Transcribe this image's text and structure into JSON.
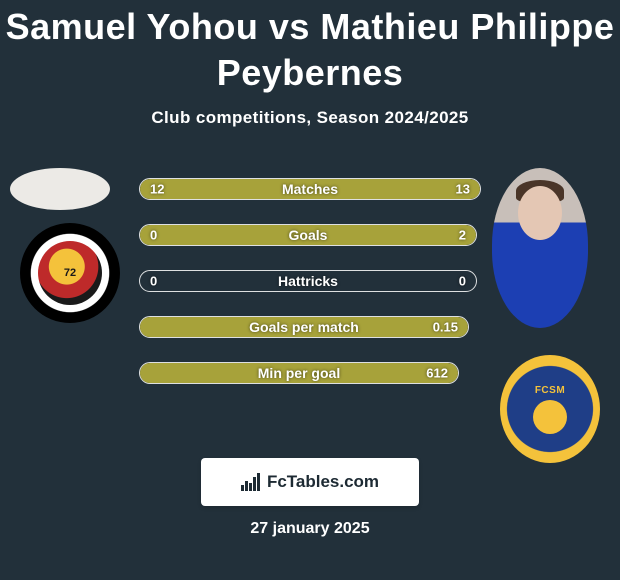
{
  "title_line1": "Samuel Yohou vs Mathieu Philippe",
  "title_line2": "Peybernes",
  "subtitle": "Club competitions, Season 2024/2025",
  "bars": [
    {
      "label": "Matches",
      "left_val": "12",
      "right_val": "13",
      "left_pct": 48,
      "right_pct": 52
    },
    {
      "label": "Goals",
      "left_val": "0",
      "right_val": "2",
      "left_pct": 0,
      "right_pct": 100
    },
    {
      "label": "Hattricks",
      "left_val": "0",
      "right_val": "0",
      "left_pct": 0,
      "right_pct": 0
    },
    {
      "label": "Goals per match",
      "left_val": "",
      "right_val": "0.15",
      "left_pct": 0,
      "right_pct": 100
    },
    {
      "label": "Min per goal",
      "left_val": "",
      "right_val": "612",
      "left_pct": 0,
      "right_pct": 100
    }
  ],
  "bar_fill_color": "#a7a23a",
  "bar_border_color": "rgba(255,255,255,0.85)",
  "footer_brand": "FcTables.com",
  "date": "27 january 2025",
  "club_left_badge_text": "72",
  "club_right_badge_text": "FCSM",
  "colors": {
    "background": "#22303a",
    "text": "#ffffff",
    "club_left_ring": "#000000",
    "club_left_inner_1": "#f4c23b",
    "club_left_inner_2": "#be2a2a",
    "club_right_outer": "#f4c23b",
    "club_right_inner": "#1f3e87",
    "player_right_shirt": "#1c3fb3"
  }
}
